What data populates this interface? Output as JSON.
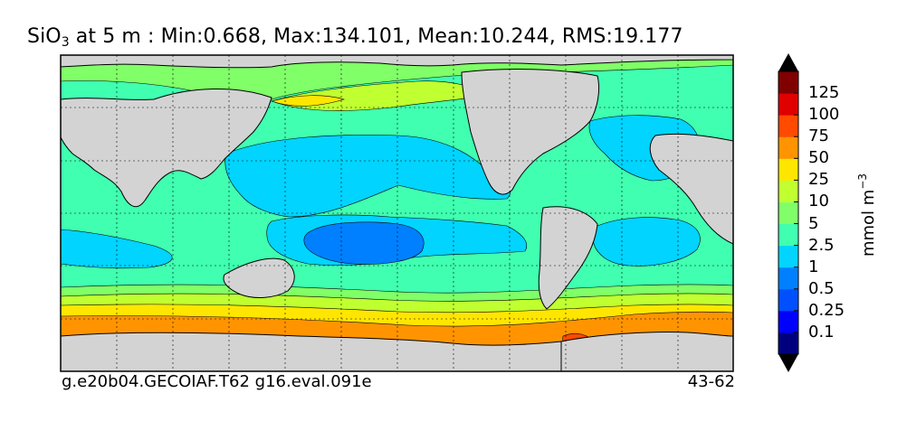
{
  "title": {
    "var_main": "SiO",
    "var_sub": "3",
    "rest": " at 5 m : Min:0.668, Max:134.101, Mean:10.244, RMS:19.177"
  },
  "footer": {
    "left": "g.e20b04.GECOIAF.T62 g16.eval.091e",
    "right": "43-62"
  },
  "colorbar": {
    "units_main": "mmol m",
    "units_sup": "−3",
    "levels": [
      "0.1",
      "0.25",
      "0.5",
      "1",
      "2.5",
      "5",
      "10",
      "25",
      "50",
      "75",
      "100",
      "125"
    ],
    "colors": [
      "#00007f",
      "#0000ff",
      "#0050ff",
      "#0080ff",
      "#00d4ff",
      "#40ffb0",
      "#80ff68",
      "#c0ff30",
      "#ffe600",
      "#ff9400",
      "#ff4a00",
      "#e00000",
      "#800000"
    ],
    "extend": "both"
  },
  "map": {
    "land_color": "#d3d3d3",
    "projection": "global lon/lat, centered on the Pacific",
    "gridlines": "dashed"
  }
}
